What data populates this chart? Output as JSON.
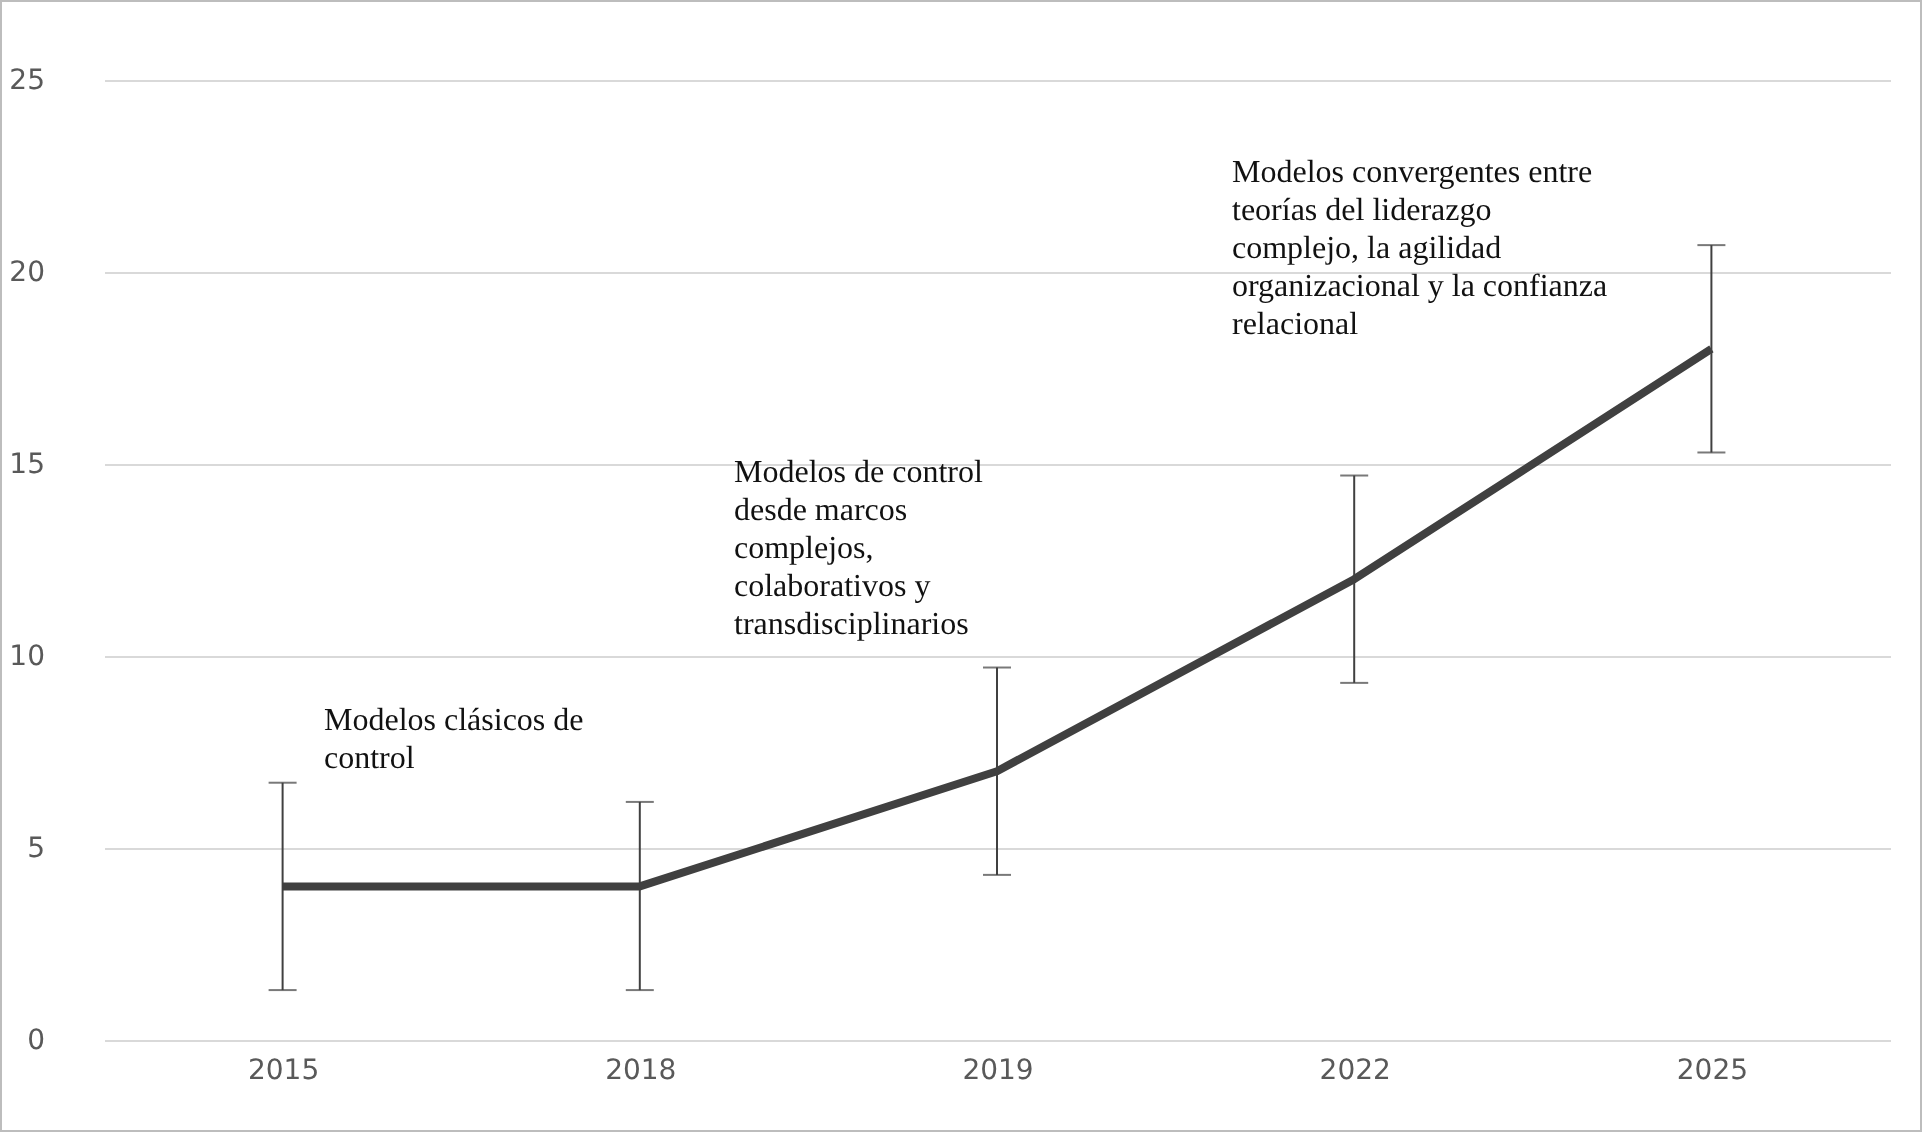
{
  "chart_data": {
    "type": "line",
    "categories": [
      "2015",
      "2018",
      "2019",
      "2022",
      "2025"
    ],
    "series": [
      {
        "color": "#404040",
        "values": [
          4,
          4,
          7,
          12,
          18
        ],
        "errors": [
          [
            1.3,
            6.7
          ],
          [
            1.3,
            6.2
          ],
          [
            4.3,
            9.7
          ],
          [
            9.3,
            14.7
          ],
          [
            15.3,
            20.7
          ]
        ]
      }
    ],
    "ylim": [
      0,
      25
    ],
    "yticks": [
      0,
      5,
      10,
      15,
      20,
      25
    ],
    "grid": "y",
    "marker": "none",
    "line_style": "solid",
    "annotations": [
      "Modelos clásicos de\ncontrol",
      "Modelos de control\ndesde marcos\ncomplejos,\ncolaborativos y\ntransdisciplinarios",
      "Modelos convergentes entre\nteorías del liderazgo\ncomplejo, la agilidad\norganizacional y la confianza\nrelacional"
    ]
  }
}
